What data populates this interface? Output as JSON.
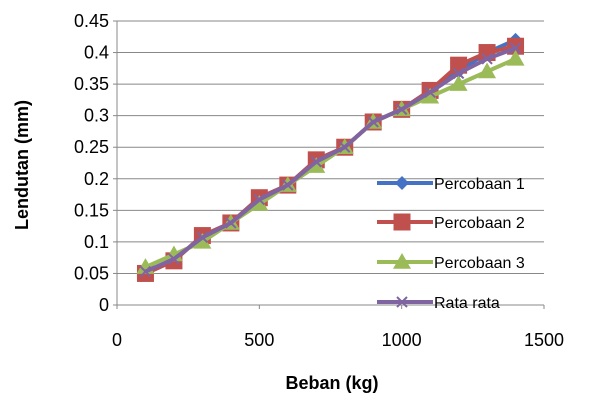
{
  "chart_data": {
    "type": "line",
    "xlabel": "Beban (kg)",
    "ylabel": "Lendutan (mm)",
    "xlim": [
      0,
      1500
    ],
    "ylim": [
      0,
      0.45
    ],
    "xticks": [
      "0",
      "500",
      "1000",
      "1500"
    ],
    "yticks": [
      "0",
      "0.05",
      "0.1",
      "0.15",
      "0.2",
      "0.25",
      "0.3",
      "0.35",
      "0.4",
      "0.45"
    ],
    "grid": "horizontal",
    "legend_position": "right",
    "x": [
      100,
      200,
      300,
      400,
      500,
      600,
      700,
      800,
      900,
      1000,
      1100,
      1200,
      1300,
      1400
    ],
    "series": [
      {
        "name": "Percobaan 1",
        "color": "#4472C4",
        "marker": "diamond",
        "values": [
          0.05,
          0.07,
          0.11,
          0.13,
          0.17,
          0.19,
          0.23,
          0.25,
          0.29,
          0.31,
          0.34,
          0.37,
          0.4,
          0.42
        ]
      },
      {
        "name": "Percobaan 2",
        "color": "#C0504D",
        "marker": "square",
        "values": [
          0.05,
          0.07,
          0.11,
          0.13,
          0.17,
          0.19,
          0.23,
          0.25,
          0.29,
          0.31,
          0.34,
          0.38,
          0.4,
          0.41
        ]
      },
      {
        "name": "Percobaan 3",
        "color": "#9BBB59",
        "marker": "triangle",
        "values": [
          0.06,
          0.08,
          0.1,
          0.13,
          0.16,
          0.19,
          0.22,
          0.25,
          0.29,
          0.31,
          0.33,
          0.35,
          0.37,
          0.39
        ]
      },
      {
        "name": "Rata rata",
        "color": "#8064A2",
        "marker": "x",
        "values": [
          0.053,
          0.073,
          0.107,
          0.13,
          0.167,
          0.19,
          0.227,
          0.25,
          0.29,
          0.31,
          0.337,
          0.367,
          0.39,
          0.407
        ]
      }
    ]
  }
}
